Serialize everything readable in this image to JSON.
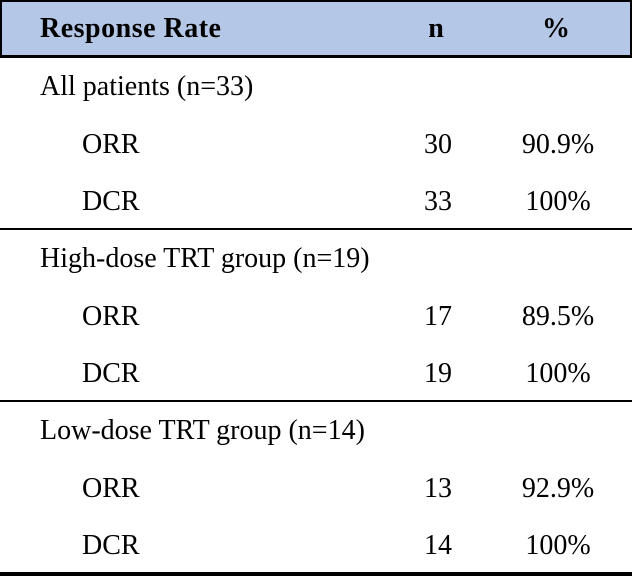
{
  "table": {
    "header": {
      "col1": "Response Rate",
      "col2": "n",
      "col3": "%"
    },
    "sections": [
      {
        "label": "All patients (n=33)",
        "rows": [
          {
            "label": "ORR",
            "n": "30",
            "pct": "90.9%"
          },
          {
            "label": "DCR",
            "n": "33",
            "pct": "100%"
          }
        ]
      },
      {
        "label": "High-dose TRT group (n=19)",
        "rows": [
          {
            "label": "ORR",
            "n": "17",
            "pct": "89.5%"
          },
          {
            "label": "DCR",
            "n": "19",
            "pct": "100%"
          }
        ]
      },
      {
        "label": "Low-dose TRT group (n=14)",
        "rows": [
          {
            "label": "ORR",
            "n": "13",
            "pct": "92.9%"
          },
          {
            "label": "DCR",
            "n": "14",
            "pct": "100%"
          }
        ]
      }
    ],
    "colors": {
      "header_bg": "#b5c7e7",
      "rule": "#000000",
      "text": "#000000"
    }
  },
  "chart_data": {
    "type": "table",
    "title": "Response Rate",
    "columns": [
      "Response Rate",
      "n",
      "%"
    ],
    "groups": [
      {
        "group": "All patients",
        "group_n": 33,
        "ORR_n": 30,
        "ORR_pct": 90.9,
        "DCR_n": 33,
        "DCR_pct": 100
      },
      {
        "group": "High-dose TRT group",
        "group_n": 19,
        "ORR_n": 17,
        "ORR_pct": 89.5,
        "DCR_n": 19,
        "DCR_pct": 100
      },
      {
        "group": "Low-dose TRT group",
        "group_n": 14,
        "ORR_n": 13,
        "ORR_pct": 92.9,
        "DCR_n": 14,
        "DCR_pct": 100
      }
    ]
  }
}
